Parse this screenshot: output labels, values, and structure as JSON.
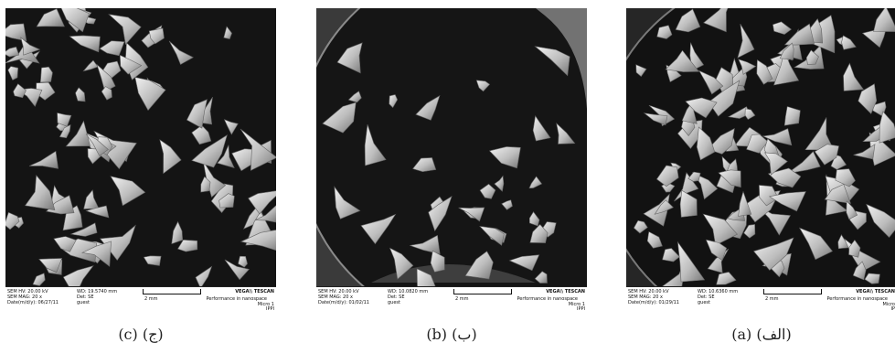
{
  "panels": [
    {
      "caption": "(c) (ج)",
      "sem": {
        "hv": "SEM HV: 20.00 kV",
        "mag": "SEM MAG: 20 x",
        "date": "Date(m/d/y): 06/27/11",
        "wd": "WD: 19.5740 mm",
        "det": "Det: SE",
        "user": "guest",
        "scale": "2 mm",
        "brand": "VEGA\\\\ TESCAN",
        "slogan": "Performance in nanospace",
        "micro": "Micro 1",
        "org": "IPPI"
      }
    },
    {
      "caption": "(b) (ب)",
      "sem": {
        "hv": "SEM HV: 20.00 kV",
        "mag": "SEM MAG: 20 x",
        "date": "Date(m/d/y): 01/02/11",
        "wd": "WD: 10.0820 mm",
        "det": "Det: SE",
        "user": "guest",
        "scale": "2 mm",
        "brand": "VEGA\\\\ TESCAN",
        "slogan": "Performance in nanospace",
        "micro": "Micro 1",
        "org": "IPPI"
      }
    },
    {
      "caption": "(a) (الف)",
      "sem": {
        "hv": "SEM HV: 20.00 kV",
        "mag": "SEM MAG: 20 x",
        "date": "Date(m/d/y): 01/29/11",
        "wd": "WD: 10.6360 mm",
        "det": "Det: SE",
        "user": "guest",
        "scale": "2 mm",
        "brand": "VEGA\\\\ TESCAN",
        "slogan": "Performance in nanospace",
        "micro": "Micro",
        "org": "IP"
      }
    }
  ]
}
